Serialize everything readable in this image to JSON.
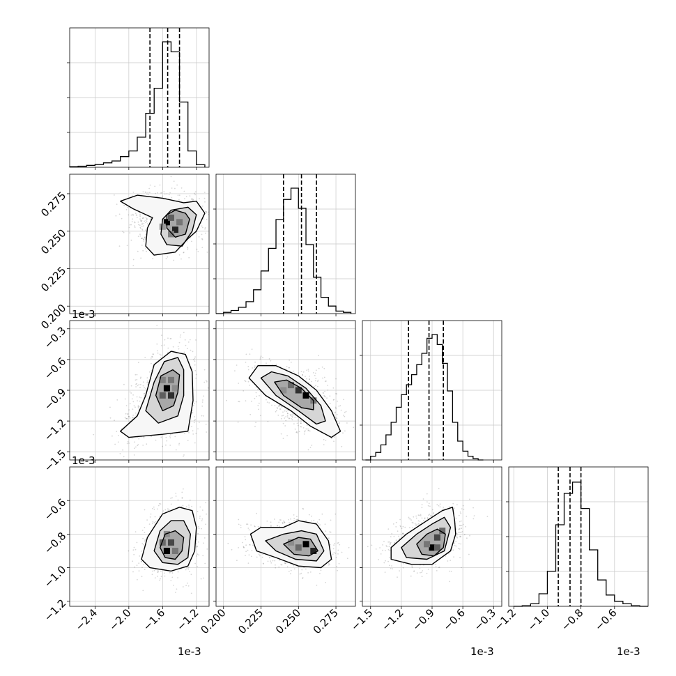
{
  "chart_data": {
    "type": "corner",
    "grid": true,
    "offset_label": "1e-3",
    "parameters": [
      {
        "ticks": [
          -2.4,
          -2.0,
          -1.6,
          -1.2
        ],
        "tick_labels": [
          "−2.4",
          "−2.0",
          "−1.6",
          "−1.2"
        ],
        "range": [
          -2.7,
          -1.05
        ],
        "offset": "1e-3"
      },
      {
        "ticks": [
          0.2,
          0.225,
          0.25,
          0.275
        ],
        "tick_labels": [
          "0.200",
          "0.225",
          "0.250",
          "0.275"
        ],
        "range": [
          0.195,
          0.288
        ],
        "offset": ""
      },
      {
        "ticks": [
          -1.5,
          -1.2,
          -0.9,
          -0.6,
          -0.3
        ],
        "tick_labels": [
          "−1.5",
          "−1.2",
          "−0.9",
          "−0.6",
          "−0.3"
        ],
        "range": [
          -1.58,
          -0.22
        ],
        "offset": "1e-3"
      },
      {
        "ticks": [
          -1.2,
          -1.0,
          -0.8,
          -0.6
        ],
        "tick_labels": [
          "−1.2",
          "−1.0",
          "−0.8",
          "−0.6"
        ],
        "range": [
          -1.23,
          -0.4
        ],
        "offset": "1e-3"
      }
    ],
    "histograms": [
      {
        "edges": [
          -2.7,
          -2.6,
          -2.5,
          -2.4,
          -2.3,
          -2.2,
          -2.1,
          -2.0,
          -1.9,
          -1.8,
          -1.7,
          -1.6,
          -1.5,
          -1.4,
          -1.3,
          -1.2,
          -1.1
        ],
        "counts": [
          0.005,
          0.008,
          0.015,
          0.022,
          0.035,
          0.05,
          0.085,
          0.13,
          0.24,
          0.43,
          0.63,
          1.0,
          0.92,
          0.52,
          0.13,
          0.02
        ],
        "quantiles": [
          -1.75,
          -1.54,
          -1.4
        ]
      },
      {
        "edges": [
          0.195,
          0.2,
          0.205,
          0.21,
          0.215,
          0.22,
          0.225,
          0.23,
          0.235,
          0.24,
          0.245,
          0.25,
          0.255,
          0.26,
          0.265,
          0.27,
          0.275,
          0.28,
          0.285
        ],
        "counts": [
          0.0,
          0.01,
          0.025,
          0.05,
          0.095,
          0.19,
          0.34,
          0.52,
          0.75,
          0.91,
          1.0,
          0.84,
          0.55,
          0.29,
          0.13,
          0.06,
          0.02,
          0.01
        ],
        "quantiles": [
          0.24,
          0.252,
          0.262
        ]
      },
      {
        "edges": [
          -1.55,
          -1.5,
          -1.45,
          -1.4,
          -1.35,
          -1.3,
          -1.25,
          -1.2,
          -1.15,
          -1.1,
          -1.05,
          -1.0,
          -0.95,
          -0.9,
          -0.85,
          -0.8,
          -0.75,
          -0.7,
          -0.65,
          -0.6,
          -0.55,
          -0.5,
          -0.45,
          -0.4
        ],
        "counts": [
          0.0,
          0.03,
          0.06,
          0.12,
          0.2,
          0.3,
          0.42,
          0.52,
          0.6,
          0.68,
          0.76,
          0.85,
          0.97,
          1.0,
          0.92,
          0.77,
          0.55,
          0.3,
          0.15,
          0.07,
          0.03,
          0.01,
          0.0
        ],
        "quantiles": [
          -1.13,
          -0.93,
          -0.79
        ]
      },
      {
        "edges": [
          -1.2,
          -1.15,
          -1.1,
          -1.05,
          -1.0,
          -0.95,
          -0.9,
          -0.85,
          -0.8,
          -0.75,
          -0.7,
          -0.65,
          -0.6,
          -0.55,
          -0.5,
          -0.45,
          -0.4
        ],
        "counts": [
          0.0,
          0.005,
          0.02,
          0.1,
          0.28,
          0.65,
          0.9,
          0.99,
          0.78,
          0.45,
          0.21,
          0.09,
          0.04,
          0.02,
          0.005,
          0.0
        ],
        "quantiles": [
          -0.935,
          -0.865,
          -0.8
        ]
      }
    ],
    "joint": [
      {
        "row": 1,
        "col": 0,
        "contours": [
          [
            [
              -1.1,
              0.262
            ],
            [
              -1.2,
              0.25
            ],
            [
              -1.3,
              0.245
            ],
            [
              -1.45,
              0.236
            ],
            [
              -1.7,
              0.234
            ],
            [
              -1.8,
              0.24
            ],
            [
              -1.78,
              0.252
            ],
            [
              -1.72,
              0.259
            ],
            [
              -1.95,
              0.265
            ],
            [
              -2.1,
              0.27
            ],
            [
              -1.9,
              0.274
            ],
            [
              -1.6,
              0.272
            ],
            [
              -1.35,
              0.269
            ],
            [
              -1.2,
              0.27
            ]
          ],
          [
            [
              -1.2,
              0.261
            ],
            [
              -1.25,
              0.25
            ],
            [
              -1.37,
              0.24
            ],
            [
              -1.55,
              0.241
            ],
            [
              -1.62,
              0.248
            ],
            [
              -1.6,
              0.258
            ],
            [
              -1.5,
              0.264
            ],
            [
              -1.3,
              0.266
            ]
          ],
          [
            [
              -1.28,
              0.258
            ],
            [
              -1.33,
              0.248
            ],
            [
              -1.45,
              0.246
            ],
            [
              -1.55,
              0.252
            ],
            [
              -1.55,
              0.261
            ],
            [
              -1.45,
              0.264
            ],
            [
              -1.33,
              0.262
            ]
          ]
        ],
        "density_cells": [
          {
            "x": -1.55,
            "y": 0.256,
            "level": 1.0
          },
          {
            "x": -1.45,
            "y": 0.251,
            "level": 0.85
          },
          {
            "x": -1.5,
            "y": 0.259,
            "level": 0.6
          },
          {
            "x": -1.4,
            "y": 0.256,
            "level": 0.5
          },
          {
            "x": -1.5,
            "y": 0.248,
            "level": 0.45
          },
          {
            "x": -1.6,
            "y": 0.253,
            "level": 0.35
          }
        ]
      },
      {
        "row": 2,
        "col": 0,
        "contours": [
          [
            [
              -1.25,
              -0.72
            ],
            [
              -1.33,
              -0.55
            ],
            [
              -1.5,
              -0.52
            ],
            [
              -1.7,
              -0.65
            ],
            [
              -1.8,
              -0.95
            ],
            [
              -1.9,
              -1.15
            ],
            [
              -2.1,
              -1.3
            ],
            [
              -2.0,
              -1.36
            ],
            [
              -1.6,
              -1.33
            ],
            [
              -1.3,
              -1.3
            ],
            [
              -1.24,
              -1.0
            ]
          ],
          [
            [
              -1.35,
              -0.7
            ],
            [
              -1.42,
              -0.58
            ],
            [
              -1.58,
              -0.62
            ],
            [
              -1.7,
              -0.82
            ],
            [
              -1.8,
              -1.1
            ],
            [
              -1.65,
              -1.22
            ],
            [
              -1.42,
              -1.15
            ],
            [
              -1.35,
              -0.95
            ]
          ],
          [
            [
              -1.4,
              -0.75
            ],
            [
              -1.48,
              -0.7
            ],
            [
              -1.62,
              -0.76
            ],
            [
              -1.68,
              -0.95
            ],
            [
              -1.6,
              -1.1
            ],
            [
              -1.47,
              -1.05
            ],
            [
              -1.42,
              -0.92
            ]
          ]
        ],
        "density_cells": [
          {
            "x": -1.55,
            "y": -0.88,
            "level": 1.0
          },
          {
            "x": -1.5,
            "y": -0.95,
            "level": 0.8
          },
          {
            "x": -1.6,
            "y": -0.95,
            "level": 0.6
          },
          {
            "x": -1.5,
            "y": -0.8,
            "level": 0.5
          },
          {
            "x": -1.6,
            "y": -0.8,
            "level": 0.45
          },
          {
            "x": -1.45,
            "y": -0.88,
            "level": 0.4
          }
        ]
      },
      {
        "row": 2,
        "col": 1,
        "contours": [
          [
            [
              0.217,
              -0.78
            ],
            [
              0.223,
              -0.66
            ],
            [
              0.235,
              -0.66
            ],
            [
              0.25,
              -0.76
            ],
            [
              0.262,
              -0.9
            ],
            [
              0.272,
              -1.1
            ],
            [
              0.278,
              -1.3
            ],
            [
              0.272,
              -1.36
            ],
            [
              0.258,
              -1.25
            ],
            [
              0.245,
              -1.1
            ],
            [
              0.228,
              -0.95
            ]
          ],
          [
            [
              0.225,
              -0.78
            ],
            [
              0.232,
              -0.72
            ],
            [
              0.243,
              -0.76
            ],
            [
              0.255,
              -0.88
            ],
            [
              0.265,
              -1.05
            ],
            [
              0.268,
              -1.2
            ],
            [
              0.262,
              -1.23
            ],
            [
              0.25,
              -1.1
            ],
            [
              0.235,
              -0.95
            ]
          ],
          [
            [
              0.234,
              -0.82
            ],
            [
              0.242,
              -0.8
            ],
            [
              0.252,
              -0.88
            ],
            [
              0.26,
              -1.0
            ],
            [
              0.26,
              -1.09
            ],
            [
              0.252,
              -1.07
            ],
            [
              0.24,
              -0.95
            ]
          ]
        ],
        "density_cells": [
          {
            "x": 0.255,
            "y": -0.95,
            "level": 1.0
          },
          {
            "x": 0.25,
            "y": -0.9,
            "level": 0.8
          },
          {
            "x": 0.245,
            "y": -0.85,
            "level": 0.55
          },
          {
            "x": 0.26,
            "y": -1.0,
            "level": 0.5
          },
          {
            "x": 0.24,
            "y": -0.9,
            "level": 0.4
          }
        ]
      },
      {
        "row": 3,
        "col": 0,
        "contours": [
          [
            [
              -1.2,
              -0.76
            ],
            [
              -1.25,
              -0.66
            ],
            [
              -1.4,
              -0.64
            ],
            [
              -1.6,
              -0.68
            ],
            [
              -1.78,
              -0.82
            ],
            [
              -1.85,
              -0.95
            ],
            [
              -1.75,
              -1.0
            ],
            [
              -1.5,
              -1.02
            ],
            [
              -1.3,
              -0.99
            ],
            [
              -1.22,
              -0.9
            ]
          ],
          [
            [
              -1.27,
              -0.8
            ],
            [
              -1.35,
              -0.72
            ],
            [
              -1.5,
              -0.72
            ],
            [
              -1.63,
              -0.78
            ],
            [
              -1.7,
              -0.9
            ],
            [
              -1.6,
              -0.97
            ],
            [
              -1.42,
              -0.98
            ],
            [
              -1.3,
              -0.94
            ]
          ],
          [
            [
              -1.35,
              -0.82
            ],
            [
              -1.45,
              -0.78
            ],
            [
              -1.57,
              -0.8
            ],
            [
              -1.63,
              -0.88
            ],
            [
              -1.57,
              -0.94
            ],
            [
              -1.45,
              -0.95
            ],
            [
              -1.37,
              -0.9
            ]
          ]
        ],
        "density_cells": [
          {
            "x": -1.55,
            "y": -0.9,
            "level": 1.0
          },
          {
            "x": -1.5,
            "y": -0.85,
            "level": 0.7
          },
          {
            "x": -1.6,
            "y": -0.85,
            "level": 0.55
          },
          {
            "x": -1.45,
            "y": -0.9,
            "level": 0.5
          },
          {
            "x": -1.55,
            "y": -0.8,
            "level": 0.4
          }
        ]
      },
      {
        "row": 3,
        "col": 1,
        "contours": [
          [
            [
              0.218,
              -0.8
            ],
            [
              0.225,
              -0.76
            ],
            [
              0.24,
              -0.76
            ],
            [
              0.25,
              -0.72
            ],
            [
              0.262,
              -0.74
            ],
            [
              0.27,
              -0.84
            ],
            [
              0.272,
              -0.95
            ],
            [
              0.265,
              -1.0
            ],
            [
              0.25,
              -0.99
            ],
            [
              0.235,
              -0.94
            ],
            [
              0.222,
              -0.9
            ]
          ],
          [
            [
              0.228,
              -0.84
            ],
            [
              0.24,
              -0.8
            ],
            [
              0.252,
              -0.78
            ],
            [
              0.262,
              -0.8
            ],
            [
              0.267,
              -0.9
            ],
            [
              0.262,
              -0.96
            ],
            [
              0.248,
              -0.95
            ],
            [
              0.235,
              -0.9
            ]
          ],
          [
            [
              0.24,
              -0.86
            ],
            [
              0.25,
              -0.82
            ],
            [
              0.258,
              -0.83
            ],
            [
              0.263,
              -0.9
            ],
            [
              0.257,
              -0.93
            ],
            [
              0.247,
              -0.92
            ]
          ]
        ],
        "density_cells": [
          {
            "x": 0.255,
            "y": -0.86,
            "level": 1.0
          },
          {
            "x": 0.26,
            "y": -0.9,
            "level": 0.85
          },
          {
            "x": 0.25,
            "y": -0.88,
            "level": 0.55
          },
          {
            "x": 0.245,
            "y": -0.85,
            "level": 0.4
          }
        ]
      },
      {
        "row": 3,
        "col": 2,
        "contours": [
          [
            [
              -0.68,
              -0.72
            ],
            [
              -0.7,
              -0.64
            ],
            [
              -0.8,
              -0.66
            ],
            [
              -0.95,
              -0.72
            ],
            [
              -1.15,
              -0.8
            ],
            [
              -1.3,
              -0.88
            ],
            [
              -1.3,
              -0.95
            ],
            [
              -1.1,
              -0.98
            ],
            [
              -0.9,
              -0.98
            ],
            [
              -0.72,
              -0.9
            ],
            [
              -0.67,
              -0.8
            ]
          ],
          [
            [
              -0.72,
              -0.76
            ],
            [
              -0.78,
              -0.7
            ],
            [
              -0.9,
              -0.74
            ],
            [
              -1.05,
              -0.8
            ],
            [
              -1.2,
              -0.88
            ],
            [
              -1.15,
              -0.94
            ],
            [
              -0.95,
              -0.95
            ],
            [
              -0.78,
              -0.9
            ]
          ],
          [
            [
              -0.77,
              -0.8
            ],
            [
              -0.85,
              -0.77
            ],
            [
              -0.95,
              -0.8
            ],
            [
              -1.05,
              -0.86
            ],
            [
              -1.0,
              -0.92
            ],
            [
              -0.88,
              -0.93
            ],
            [
              -0.79,
              -0.88
            ]
          ]
        ],
        "density_cells": [
          {
            "x": -0.9,
            "y": -0.88,
            "level": 1.0
          },
          {
            "x": -0.85,
            "y": -0.82,
            "level": 0.7
          },
          {
            "x": -0.8,
            "y": -0.78,
            "level": 0.55
          },
          {
            "x": -0.95,
            "y": -0.86,
            "level": 0.5
          },
          {
            "x": -0.85,
            "y": -0.88,
            "level": 0.6
          }
        ]
      }
    ]
  }
}
